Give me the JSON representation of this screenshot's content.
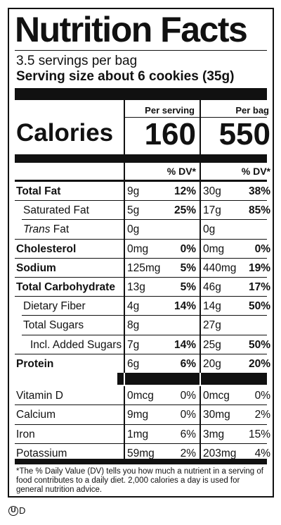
{
  "panel": {
    "title": "Nutrition Facts",
    "servings": "3.5 servings per bag",
    "serving_size": "Serving size about 6 cookies (35g)",
    "calories_label": "Calories",
    "col1_header": "Per serving",
    "col2_header": "Per bag",
    "col1_calories": "160",
    "col2_calories": "550",
    "dv_header": "% DV*"
  },
  "nutrients": [
    {
      "label": "Total Fat",
      "bold": true,
      "indent": 0,
      "amt1": "9g",
      "dv1": "12%",
      "amt2": "30g",
      "dv2": "38%"
    },
    {
      "label": "Saturated Fat",
      "bold": false,
      "indent": 1,
      "amt1": "5g",
      "dv1": "25%",
      "amt2": "17g",
      "dv2": "85%"
    },
    {
      "label_italic": "Trans",
      "label": " Fat",
      "bold": false,
      "indent": 1,
      "amt1": "0g",
      "dv1": "",
      "amt2": "0g",
      "dv2": ""
    },
    {
      "label": "Cholesterol",
      "bold": true,
      "indent": 0,
      "amt1": "0mg",
      "dv1": "0%",
      "amt2": "0mg",
      "dv2": "0%"
    },
    {
      "label": "Sodium",
      "bold": true,
      "indent": 0,
      "amt1": "125mg",
      "dv1": "5%",
      "amt2": "440mg",
      "dv2": "19%"
    },
    {
      "label": "Total Carbohydrate",
      "bold": true,
      "indent": 0,
      "amt1": "13g",
      "dv1": "5%",
      "amt2": "46g",
      "dv2": "17%"
    },
    {
      "label": "Dietary Fiber",
      "bold": false,
      "indent": 1,
      "amt1": "4g",
      "dv1": "14%",
      "amt2": "14g",
      "dv2": "50%"
    },
    {
      "label": "Total Sugars",
      "bold": false,
      "indent": 1,
      "amt1": "8g",
      "dv1": "",
      "amt2": "27g",
      "dv2": ""
    },
    {
      "label": "Incl. Added Sugars",
      "bold": false,
      "indent": 2,
      "amt1": "7g",
      "dv1": "14%",
      "amt2": "25g",
      "dv2": "50%"
    },
    {
      "label": "Protein",
      "bold": true,
      "indent": 0,
      "amt1": "6g",
      "dv1": "6%",
      "amt2": "20g",
      "dv2": "20%"
    }
  ],
  "vitamins": [
    {
      "label": "Vitamin D",
      "amt1": "0mcg",
      "dv1": "0%",
      "amt2": "0mcg",
      "dv2": "0%"
    },
    {
      "label": "Calcium",
      "amt1": "9mg",
      "dv1": "0%",
      "amt2": "30mg",
      "dv2": "2%"
    },
    {
      "label": "Iron",
      "amt1": "1mg",
      "dv1": "6%",
      "amt2": "3mg",
      "dv2": "15%"
    },
    {
      "label": "Potassium",
      "amt1": "59mg",
      "dv1": "2%",
      "amt2": "203mg",
      "dv2": "4%"
    }
  ],
  "footnote": "*The % Daily Value (DV) tells you how much a nutrient in a serving of food contributes to a daily diet. 2,000 calories a day is used for general nutrition advice.",
  "symbol": {
    "circle_letter": "U",
    "letter": "D"
  }
}
